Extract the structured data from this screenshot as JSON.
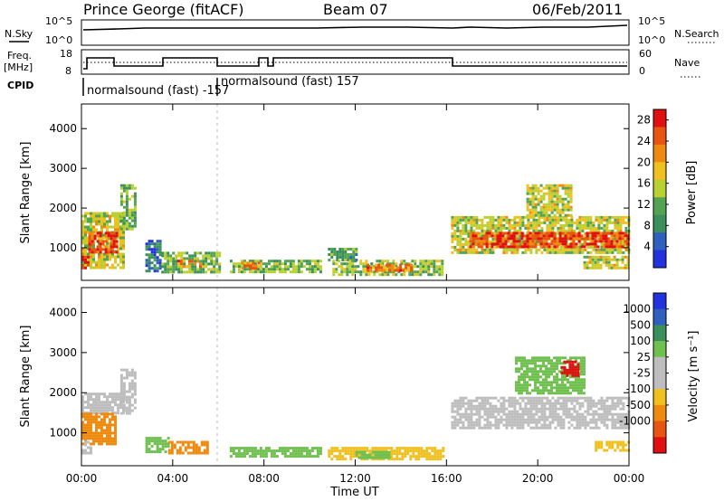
{
  "header": {
    "station": "Prince George (fitACF)",
    "beam": "Beam 07",
    "date": "06/Feb/2011"
  },
  "strip": {
    "nsky_label": "N.Sky",
    "nsearch_label": "N.Search",
    "freq_label_1": "Freq.",
    "freq_label_2": "[MHz]",
    "nave_label": "Nave",
    "cpid_label": "CPID",
    "left_ticks_top": [
      "10^5",
      "10^0"
    ],
    "right_ticks_top": [
      "10^5",
      "10^0"
    ],
    "left_ticks_freq": [
      "18",
      "8"
    ],
    "right_ticks_nave": [
      "60",
      "0"
    ],
    "cpid_1": "normalsound (fast) -157",
    "cpid_2": "normalsound (fast) 157"
  },
  "colors": {
    "power": [
      "#2233dd",
      "#2f5fbf",
      "#3a8f5a",
      "#52a352",
      "#b8d030",
      "#f0c020",
      "#ee8a10",
      "#e85510",
      "#e01010"
    ],
    "velocity": [
      "#2233dd",
      "#2f5fbf",
      "#3a8f5a",
      "#70c050",
      "#bdbdbd",
      "#bdbdbd",
      "#f0c020",
      "#ee8a10",
      "#e85510",
      "#e01010"
    ]
  },
  "chart_data": [
    {
      "type": "heatmap",
      "name": "power",
      "xlabel": "Time UT",
      "ylabel": "Slant Range [km]",
      "xticks": [
        "00:00",
        "04:00",
        "08:00",
        "12:00",
        "16:00",
        "20:00",
        "00:00"
      ],
      "yticks": [
        "1000",
        "2000",
        "3000",
        "4000"
      ],
      "xlim_hours": [
        0,
        24
      ],
      "ylim_km": [
        180,
        4620
      ],
      "colorbar_label": "Power [dB]",
      "colorbar_ticks": [
        "4",
        "8",
        "12",
        "16",
        "20",
        "24",
        "28"
      ],
      "colorbar_range": [
        0,
        30
      ],
      "regions": [
        {
          "t0": 0.0,
          "t1": 1.8,
          "r0": 500,
          "r1": 1900,
          "v": 16
        },
        {
          "t0": 0.3,
          "t1": 1.5,
          "r0": 900,
          "r1": 1400,
          "v": 26
        },
        {
          "t0": 0.0,
          "t1": 0.3,
          "r0": 500,
          "r1": 800,
          "v": 28
        },
        {
          "t0": 1.7,
          "t1": 2.3,
          "r0": 1500,
          "r1": 2600,
          "v": 12
        },
        {
          "t0": 2.8,
          "t1": 3.5,
          "r0": 400,
          "r1": 1200,
          "v": 6
        },
        {
          "t0": 3.5,
          "t1": 6.0,
          "r0": 400,
          "r1": 900,
          "v": 12
        },
        {
          "t0": 4.2,
          "t1": 5.2,
          "r0": 500,
          "r1": 700,
          "v": 22
        },
        {
          "t0": 6.5,
          "t1": 10.5,
          "r0": 400,
          "r1": 700,
          "v": 12
        },
        {
          "t0": 7.0,
          "t1": 7.8,
          "r0": 450,
          "r1": 650,
          "v": 22
        },
        {
          "t0": 10.8,
          "t1": 12.0,
          "r0": 700,
          "r1": 1000,
          "v": 10
        },
        {
          "t0": 11.0,
          "t1": 15.8,
          "r0": 350,
          "r1": 700,
          "v": 14
        },
        {
          "t0": 12.5,
          "t1": 14.5,
          "r0": 400,
          "r1": 600,
          "v": 22
        },
        {
          "t0": 16.2,
          "t1": 24.0,
          "r0": 900,
          "r1": 1800,
          "v": 16
        },
        {
          "t0": 17.0,
          "t1": 24.0,
          "r0": 1050,
          "r1": 1400,
          "v": 26
        },
        {
          "t0": 19.5,
          "t1": 21.5,
          "r0": 1800,
          "r1": 2600,
          "v": 16
        },
        {
          "t0": 22.0,
          "t1": 24.0,
          "r0": 500,
          "r1": 800,
          "v": 16
        }
      ]
    },
    {
      "type": "heatmap",
      "name": "velocity",
      "xlabel": "Time UT",
      "ylabel": "Slant Range [km]",
      "xticks": [
        "00:00",
        "04:00",
        "08:00",
        "12:00",
        "16:00",
        "20:00",
        "00:00"
      ],
      "yticks": [
        "1000",
        "2000",
        "3000",
        "4000"
      ],
      "xlim_hours": [
        0,
        24
      ],
      "ylim_km": [
        180,
        4620
      ],
      "colorbar_label": "Velocity [m s⁻¹]",
      "colorbar_ticks": [
        "1000",
        "500",
        "100",
        "25",
        "-25",
        "-100",
        "-500",
        "-1000"
      ],
      "regions": [
        {
          "t0": 0.0,
          "t1": 1.8,
          "r0": 1500,
          "r1": 2000,
          "v": "0"
        },
        {
          "t0": 0.0,
          "t1": 1.5,
          "r0": 700,
          "r1": 1500,
          "v": "-300"
        },
        {
          "t0": 0.0,
          "t1": 0.4,
          "r0": 500,
          "r1": 800,
          "v": "0"
        },
        {
          "t0": 1.7,
          "t1": 2.3,
          "r0": 1500,
          "r1": 2600,
          "v": "0"
        },
        {
          "t0": 2.8,
          "t1": 3.8,
          "r0": 500,
          "r1": 900,
          "v": "60"
        },
        {
          "t0": 3.8,
          "t1": 5.5,
          "r0": 500,
          "r1": 800,
          "v": "-200"
        },
        {
          "t0": 6.5,
          "t1": 10.5,
          "r0": 400,
          "r1": 650,
          "v": "80"
        },
        {
          "t0": 10.8,
          "t1": 15.8,
          "r0": 350,
          "r1": 650,
          "v": "-60"
        },
        {
          "t0": 12.0,
          "t1": 13.5,
          "r0": 400,
          "r1": 550,
          "v": "80"
        },
        {
          "t0": 16.2,
          "t1": 24.0,
          "r0": 1100,
          "r1": 1900,
          "v": "0"
        },
        {
          "t0": 19.0,
          "t1": 22.0,
          "r0": 2000,
          "r1": 2900,
          "v": "60"
        },
        {
          "t0": 21.0,
          "t1": 21.8,
          "r0": 2400,
          "r1": 2800,
          "v": "-500"
        },
        {
          "t0": 22.5,
          "t1": 24.0,
          "r0": 550,
          "r1": 800,
          "v": "-60"
        }
      ]
    }
  ]
}
